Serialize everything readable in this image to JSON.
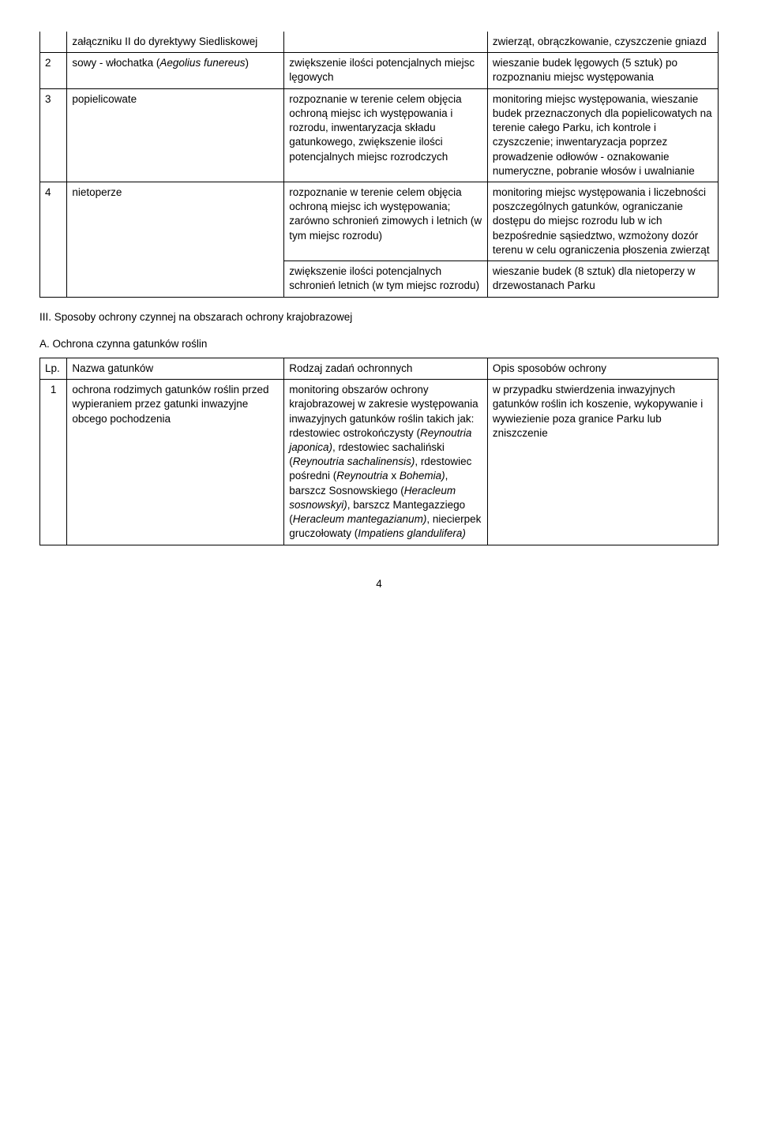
{
  "table1": {
    "rows": [
      {
        "num": "",
        "a": "załączniku II do dyrektywy Siedliskowej",
        "b": "",
        "c": "zwierząt, obrączkowanie, czyszczenie gniazd"
      },
      {
        "num": "2",
        "a_prefix": "sowy - włochatka (",
        "a_italic": "Aegolius funereus",
        "a_suffix": ")",
        "b": "zwiększenie ilości potencjalnych miejsc lęgowych",
        "c": "wieszanie budek lęgowych (5 sztuk) po rozpoznaniu miejsc występowania"
      },
      {
        "num": "3",
        "a": "popielicowate",
        "b": "rozpoznanie w terenie celem objęcia ochroną miejsc ich występowania i rozrodu, inwentaryzacja składu gatunkowego, zwiększenie ilości potencjalnych miejsc rozrodczych",
        "c": "monitoring miejsc występowania, wieszanie budek przeznaczonych dla popielicowatych na terenie całego Parku, ich kontrole i czyszczenie; inwentaryzacja poprzez prowadzenie odłowów - oznakowanie numeryczne, pobranie włosów i uwalnianie"
      },
      {
        "num": "4",
        "a": "nietoperze",
        "b": "rozpoznanie w terenie celem objęcia ochroną miejsc ich występowania; zarówno schronień zimowych i letnich (w tym miejsc rozrodu)",
        "c": "monitoring miejsc występowania i liczebności poszczególnych gatunków, ograniczanie dostępu do miejsc rozrodu lub w ich bezpośrednie sąsiedztwo, wzmożony dozór terenu w celu ograniczenia płoszenia zwierząt"
      },
      {
        "num": "",
        "a": "",
        "b": "zwiększenie ilości potencjalnych schronień letnich (w tym miejsc rozrodu)",
        "c": "wieszanie budek (8 sztuk) dla nietoperzy w drzewostanach Parku"
      }
    ]
  },
  "section_heading": "III. Sposoby ochrony czynnej na obszarach ochrony krajobrazowej",
  "sub_heading": "A. Ochrona czynna gatunków roślin",
  "table2": {
    "header": {
      "num": "Lp.",
      "a": "Nazwa gatunków",
      "b": "Rodzaj zadań ochronnych",
      "c": "Opis sposobów ochrony"
    },
    "row1": {
      "num": "1",
      "a": "ochrona rodzimych gatunków roślin przed wypieraniem przez gatunki inwazyjne obcego pochodzenia",
      "b_parts": [
        {
          "t": "monitoring obszarów ochrony krajobrazowej w zakresie występowania inwazyjnych gatunków roślin takich jak: rdestowiec ostrokończysty ("
        },
        {
          "t": "Reynoutria japonica)",
          "i": true
        },
        {
          "t": ", rdestowiec sachaliński ("
        },
        {
          "t": "Reynoutria sachalinensis)",
          "i": true
        },
        {
          "t": ", rdestowiec pośredni ("
        },
        {
          "t": "Reynoutria",
          "i": true
        },
        {
          "t": " x "
        },
        {
          "t": "Bohemia)",
          "i": true
        },
        {
          "t": ", barszcz Sosnowskiego ("
        },
        {
          "t": "Heracleum sosnowskyi)",
          "i": true
        },
        {
          "t": ", barszcz Mantegazziego ("
        },
        {
          "t": "Heracleum mantegazianum)",
          "i": true
        },
        {
          "t": ", niecierpek gruczołowaty ("
        },
        {
          "t": "Impatiens glandulifera)",
          "i": true
        }
      ],
      "c": "w przypadku stwierdzenia inwazyjnych gatunków roślin ich koszenie, wykopywanie i wywiezienie poza granice Parku lub zniszczenie"
    }
  },
  "page_number": "4"
}
